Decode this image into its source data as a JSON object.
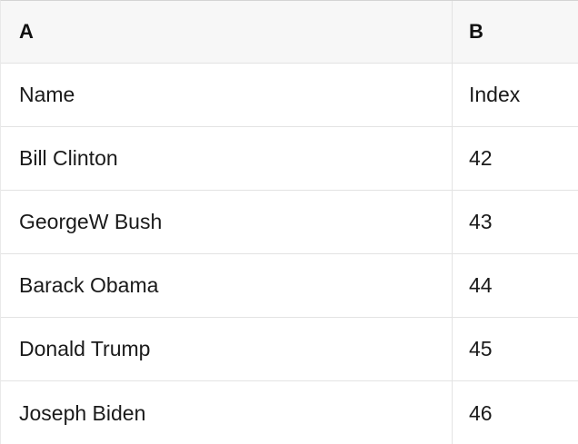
{
  "table": {
    "columns": [
      {
        "label": "A"
      },
      {
        "label": "B"
      }
    ],
    "rows": [
      {
        "a": "Name",
        "b": "Index"
      },
      {
        "a": "Bill Clinton",
        "b": "42"
      },
      {
        "a": "GeorgeW Bush",
        "b": "43"
      },
      {
        "a": "Barack Obama",
        "b": "44"
      },
      {
        "a": "Donald Trump",
        "b": "45"
      },
      {
        "a": "Joseph Biden",
        "b": "46"
      }
    ],
    "colors": {
      "header_background": "#f7f7f7",
      "row_background": "#ffffff",
      "grid_border": "#e3e3e3",
      "top_border": "#d4d4d4",
      "text": "#1a1a1a"
    }
  }
}
